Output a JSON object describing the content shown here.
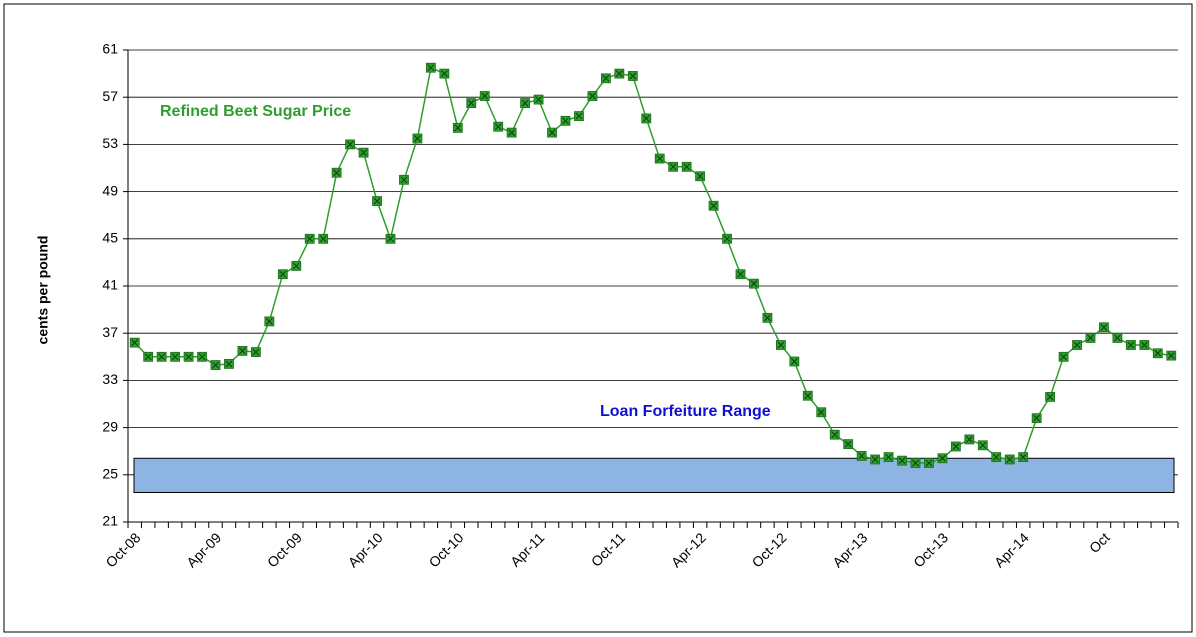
{
  "chart_data": {
    "type": "line",
    "y_label": "cents per pound",
    "annotations": {
      "series_label": "Refined Beet Sugar Price",
      "band_label": "Loan Forfeiture Range"
    },
    "band": [
      23.5,
      26.4
    ],
    "band_color": "#8eb4e3",
    "categories": [
      "Oct-08",
      null,
      null,
      null,
      null,
      null,
      "Apr-09",
      null,
      null,
      null,
      null,
      null,
      "Oct-09",
      null,
      null,
      null,
      null,
      null,
      "Apr-10",
      null,
      null,
      null,
      null,
      null,
      "Oct-10",
      null,
      null,
      null,
      null,
      null,
      "Apr-11",
      null,
      null,
      null,
      null,
      null,
      "Oct-11",
      null,
      null,
      null,
      null,
      null,
      "Apr-12",
      null,
      null,
      null,
      null,
      null,
      "Oct-12",
      null,
      null,
      null,
      null,
      null,
      "Apr-13",
      null,
      null,
      null,
      null,
      null,
      "Oct-13",
      null,
      null,
      null,
      null,
      null,
      "Apr-14",
      null,
      null,
      null,
      null,
      null,
      "Oct",
      null,
      null,
      null,
      null,
      null
    ],
    "series": [
      {
        "name": "Refined Beet Sugar Price",
        "color": "#2e9e2e",
        "values": [
          36.2,
          35,
          35,
          35,
          35,
          35,
          34.3,
          34.4,
          35.5,
          35.4,
          38,
          42,
          42.7,
          45,
          45,
          50.6,
          53,
          52.3,
          48.2,
          45,
          50,
          53.5,
          59.5,
          59,
          54.4,
          56.5,
          57.1,
          54.5,
          54,
          56.5,
          56.8,
          54,
          55,
          55.4,
          57.1,
          58.6,
          59,
          58.8,
          55.2,
          51.8,
          51.1,
          51.1,
          50.3,
          47.8,
          45,
          42,
          41.2,
          38.3,
          36,
          34.6,
          31.7,
          30.3,
          28.4,
          27.6,
          26.6,
          26.3,
          26.5,
          26.2,
          26,
          26,
          26.4,
          27.4,
          28,
          27.5,
          26.5,
          26.3,
          26.5,
          29.8,
          31.6,
          35,
          36,
          36.6,
          37.5,
          36.6,
          36,
          36,
          35.3,
          35.1
        ]
      }
    ],
    "ylim": [
      21,
      61
    ],
    "yticks": [
      21,
      25,
      29,
      33,
      37,
      41,
      45,
      49,
      53,
      57,
      61
    ],
    "grid": true
  }
}
